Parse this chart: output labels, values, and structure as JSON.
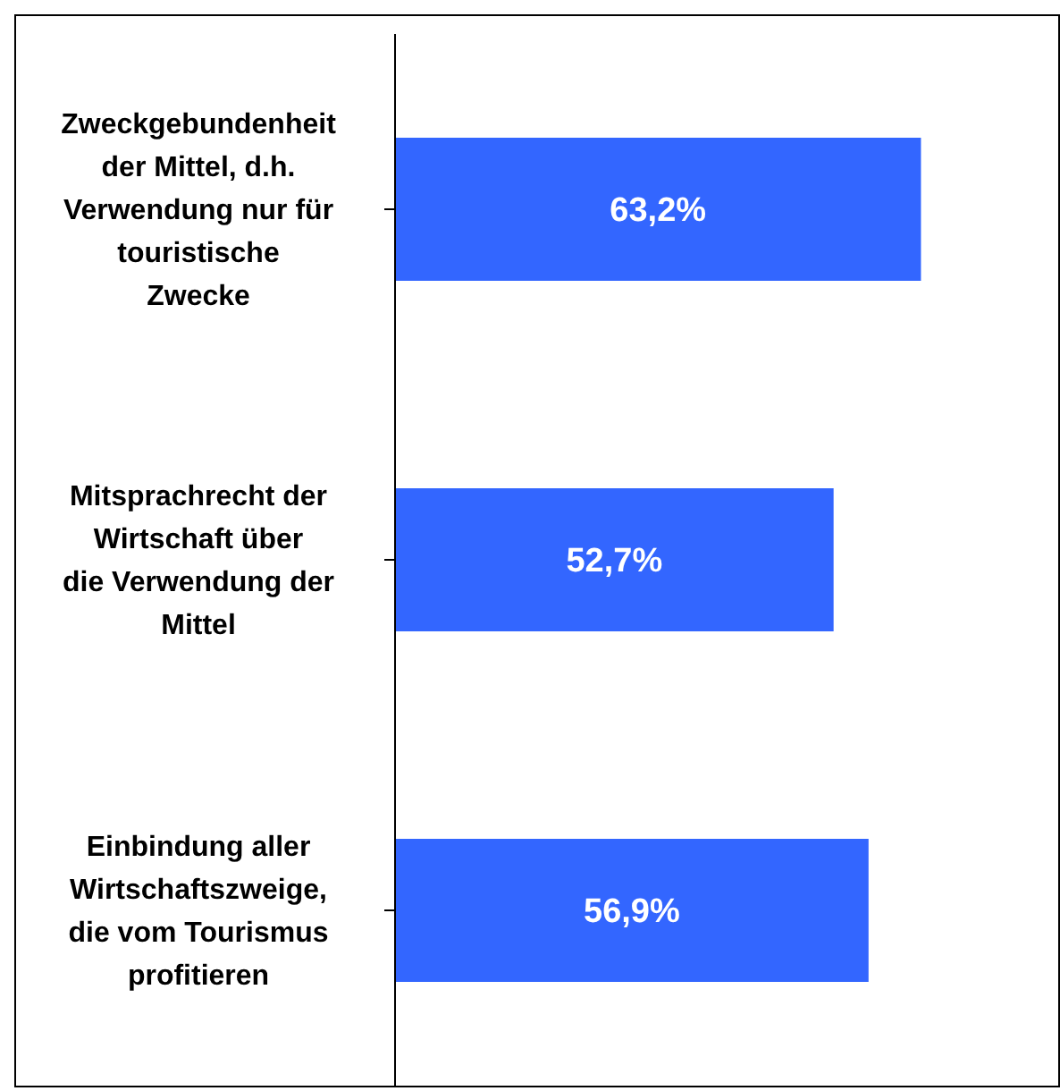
{
  "chart_data": {
    "type": "bar",
    "orientation": "horizontal",
    "categories": [
      "Zweckgebundenheit der Mittel, d.h. Verwendung nur für touristische Zwecke",
      "Mitsprachrecht der Wirtschaft über die Verwendung der Mittel",
      "Einbindung aller Wirtschaftszweige, die vom Tourismus profitieren"
    ],
    "values": [
      63.2,
      52.7,
      56.9
    ],
    "value_labels": [
      "63,2%",
      "52,7%",
      "56,9%"
    ],
    "color": "#3366ff"
  }
}
